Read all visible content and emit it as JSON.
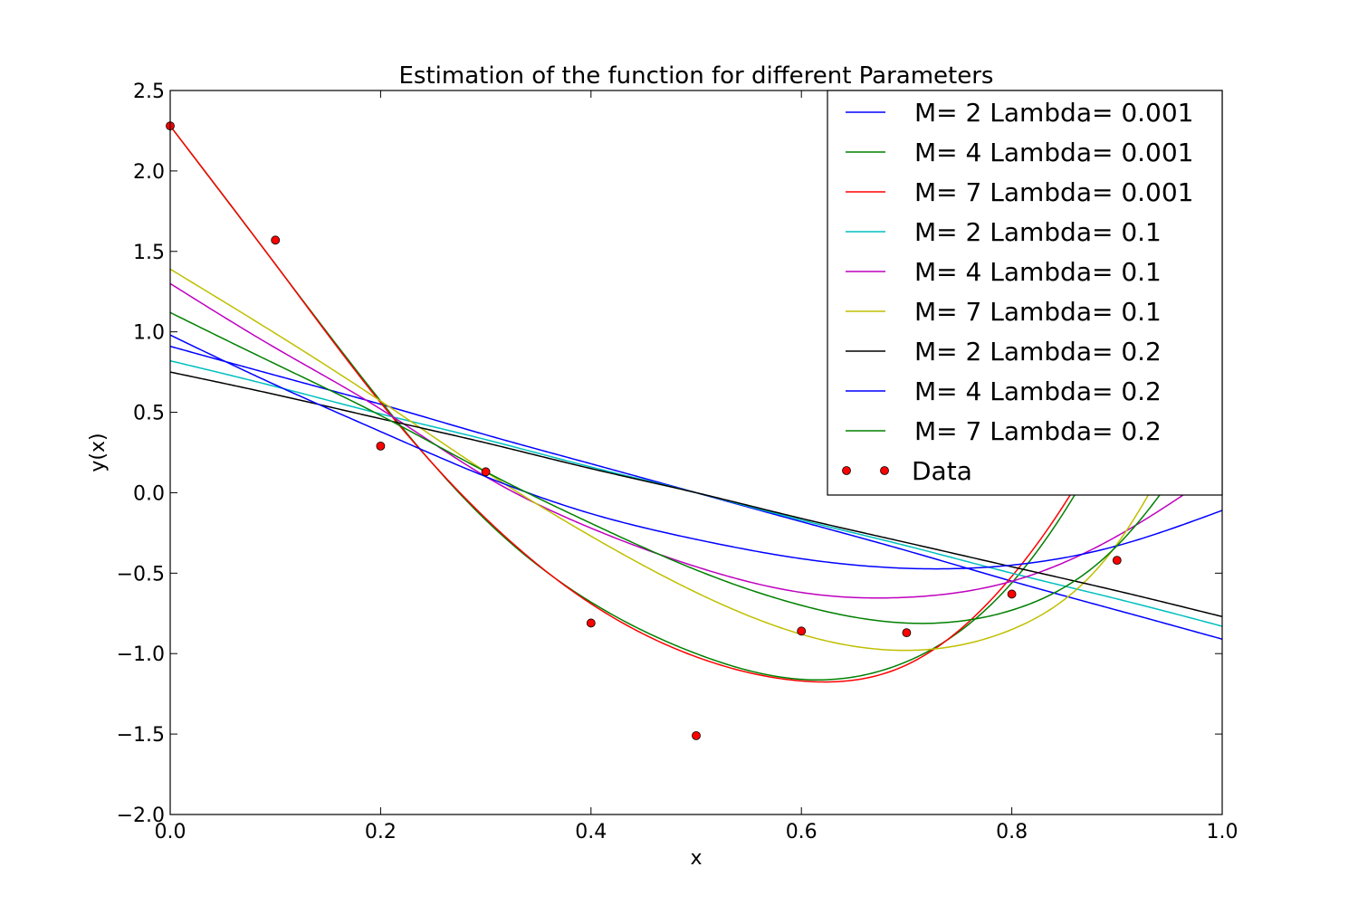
{
  "chart_data": {
    "type": "line",
    "title": "Estimation of the function for different Parameters",
    "xlabel": "x",
    "ylabel": "y(x)",
    "xlim": [
      0.0,
      1.0
    ],
    "ylim": [
      -2.0,
      2.5
    ],
    "x_ticks": [
      "0.0",
      "0.2",
      "0.4",
      "0.6",
      "0.8",
      "1.0"
    ],
    "y_ticks": [
      "2.5",
      "2.0",
      "1.5",
      "1.0",
      "0.5",
      "0.0",
      "−0.5",
      "−1.0",
      "−1.5",
      "−2.0"
    ],
    "grid": false,
    "legend_position": "top-right",
    "x": [
      0.0,
      0.1,
      0.2,
      0.3,
      0.4,
      0.5,
      0.6,
      0.7,
      0.8,
      0.9,
      1.0
    ],
    "series": [
      {
        "name": "M= 2 Lambda= 0.001",
        "color": "#0000ff",
        "values": [
          0.91,
          0.73,
          0.55,
          0.36,
          0.18,
          0.0,
          -0.18,
          -0.36,
          -0.55,
          -0.73,
          -0.91
        ]
      },
      {
        "name": "M= 4 Lambda= 0.001",
        "color": "#008000",
        "values": [
          2.28,
          1.42,
          0.57,
          -0.17,
          -0.68,
          -1.0,
          -1.16,
          -1.05,
          -0.56,
          0.46,
          1.9
        ]
      },
      {
        "name": "M= 7 Lambda= 0.001",
        "color": "#ff0000",
        "values": [
          2.28,
          1.42,
          0.56,
          -0.16,
          -0.69,
          -1.02,
          -1.17,
          -1.07,
          -0.52,
          0.5,
          1.95
        ]
      },
      {
        "name": "M= 2 Lambda= 0.1",
        "color": "#00bfbf",
        "values": [
          0.82,
          0.66,
          0.49,
          0.33,
          0.16,
          0.0,
          -0.17,
          -0.33,
          -0.5,
          -0.66,
          -0.83
        ]
      },
      {
        "name": "M= 4 Lambda= 0.1",
        "color": "#bf00bf",
        "values": [
          1.3,
          0.9,
          0.52,
          0.1,
          -0.22,
          -0.46,
          -0.62,
          -0.65,
          -0.55,
          -0.27,
          0.15
        ]
      },
      {
        "name": "M= 7 Lambda= 0.1",
        "color": "#bfbf00",
        "values": [
          1.39,
          0.99,
          0.57,
          0.13,
          -0.27,
          -0.62,
          -0.88,
          -0.98,
          -0.85,
          -0.32,
          0.9
        ]
      },
      {
        "name": "M= 2 Lambda= 0.2",
        "color": "#000000",
        "values": [
          0.75,
          0.61,
          0.46,
          0.31,
          0.15,
          0.0,
          -0.16,
          -0.31,
          -0.46,
          -0.61,
          -0.77
        ]
      },
      {
        "name": "M= 4 Lambda= 0.2",
        "color": "#0000ff",
        "values": [
          0.98,
          0.67,
          0.38,
          0.1,
          -0.13,
          -0.29,
          -0.41,
          -0.47,
          -0.45,
          -0.33,
          -0.11
        ]
      },
      {
        "name": "M= 7 Lambda= 0.2",
        "color": "#008000",
        "values": [
          1.12,
          0.8,
          0.48,
          0.13,
          -0.19,
          -0.48,
          -0.7,
          -0.81,
          -0.73,
          -0.33,
          0.55
        ]
      }
    ],
    "points": {
      "name": "Data",
      "color": "#ff0000",
      "x": [
        0.0,
        0.1,
        0.2,
        0.3,
        0.4,
        0.5,
        0.6,
        0.7,
        0.8,
        0.9
      ],
      "y": [
        2.28,
        1.57,
        0.29,
        0.13,
        -0.81,
        -1.51,
        -0.86,
        -0.87,
        -0.63,
        -0.42
      ]
    }
  }
}
